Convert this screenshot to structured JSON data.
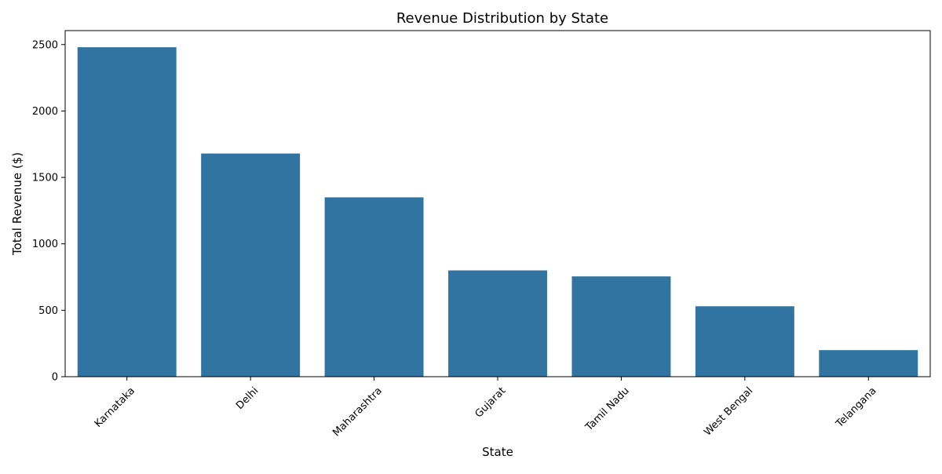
{
  "chart_data": {
    "type": "bar",
    "title": "Revenue Distribution by State",
    "xlabel": "State",
    "ylabel": "Total Revenue ($)",
    "categories": [
      "Karnataka",
      "Delhi",
      "Maharashtra",
      "Gujarat",
      "Tamil Nadu",
      "West Bengal",
      "Telangana"
    ],
    "values": [
      2480,
      1680,
      1350,
      800,
      755,
      530,
      200
    ],
    "ylim": [
      0,
      2605
    ],
    "yticks": [
      0,
      500,
      1000,
      1500,
      2000,
      2500
    ],
    "grid": false,
    "legend": "none",
    "bar_color": "#3274a1",
    "x_tick_rotation_deg": 45
  }
}
